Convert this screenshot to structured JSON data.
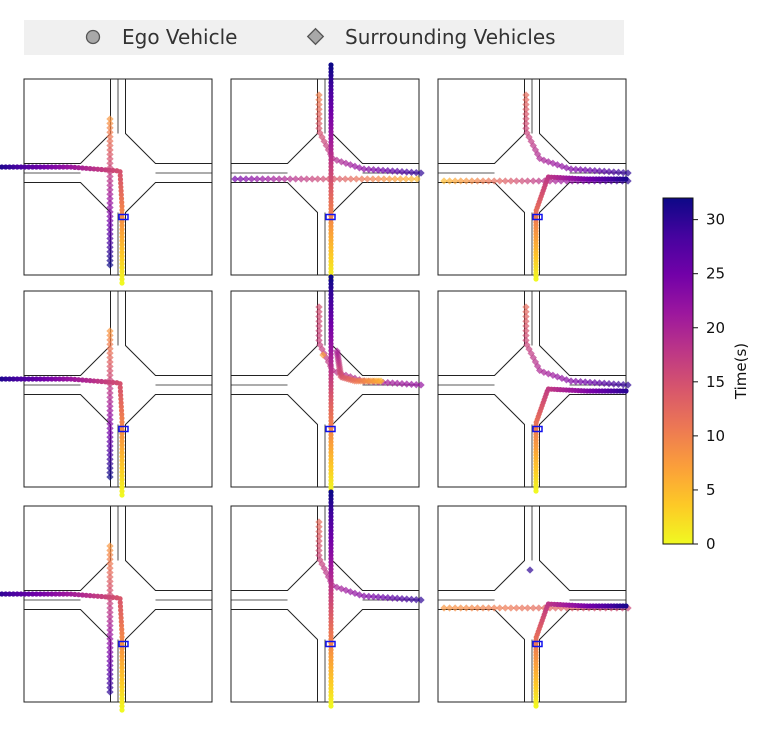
{
  "colors": {
    "ego_marker": "#a8a8a8",
    "surrounding_marker": "#a8a8a8",
    "legend_bg": "#f0f0f0",
    "road_line": "#222222",
    "start_box": "#1010ee",
    "plasma": [
      "#f0f921",
      "#fdca26",
      "#fb9f3a",
      "#ed7953",
      "#d8576b",
      "#bd3786",
      "#9c179e",
      "#7201a8",
      "#46039f",
      "#0d0887"
    ]
  },
  "legend": {
    "ego_label": "Ego Vehicle",
    "surrounding_label": "Surrounding Vehicles",
    "ego_icon": "circle-marker",
    "surrounding_icon": "diamond-marker"
  },
  "chart_data": {
    "type": "scatter",
    "description_grid": "3x3 intersection panels, trajectories colored by time",
    "colorbar": {
      "label": "Time(s)",
      "range": [
        0,
        32
      ],
      "ticks": [
        0,
        5,
        10,
        15,
        20,
        25,
        30
      ],
      "colormap": "plasma"
    },
    "panels": [
      {
        "ego": "south_to_west",
        "ego_t": [
          0,
          31
        ],
        "surr": [
          [
            "north_to_south",
            8,
            32
          ]
        ]
      },
      {
        "ego": "south_to_north",
        "ego_t": [
          0,
          32
        ],
        "surr": [
          [
            "north_to_east",
            10,
            30
          ],
          [
            "east_to_west",
            5,
            25
          ]
        ]
      },
      {
        "ego": "south_to_east",
        "ego_t": [
          0,
          31
        ],
        "surr": [
          [
            "north_to_east",
            12,
            30
          ],
          [
            "west_to_east",
            5,
            30
          ]
        ]
      },
      {
        "ego": "south_to_west",
        "ego_t": [
          0,
          31
        ],
        "surr": [
          [
            "north_to_south",
            8,
            32
          ]
        ]
      },
      {
        "ego": "south_to_north",
        "ego_t": [
          0,
          32
        ],
        "surr": [
          [
            "north_to_east",
            15,
            22
          ],
          [
            "east_to_north",
            5,
            20
          ],
          [
            "static_north",
            7,
            7
          ]
        ]
      },
      {
        "ego": "south_to_east",
        "ego_t": [
          0,
          30
        ],
        "surr": [
          [
            "north_to_east",
            12,
            30
          ]
        ]
      },
      {
        "ego": "south_to_west",
        "ego_t": [
          0,
          30
        ],
        "surr": [
          [
            "north_to_south",
            8,
            30
          ]
        ]
      },
      {
        "ego": "south_to_north",
        "ego_t": [
          0,
          32
        ],
        "surr": [
          [
            "north_to_east",
            12,
            30
          ]
        ]
      },
      {
        "ego": "south_to_east",
        "ego_t": [
          0,
          31
        ],
        "surr": [
          [
            "west_to_east",
            8,
            16
          ],
          [
            "static_north",
            30,
            30
          ]
        ]
      }
    ]
  }
}
